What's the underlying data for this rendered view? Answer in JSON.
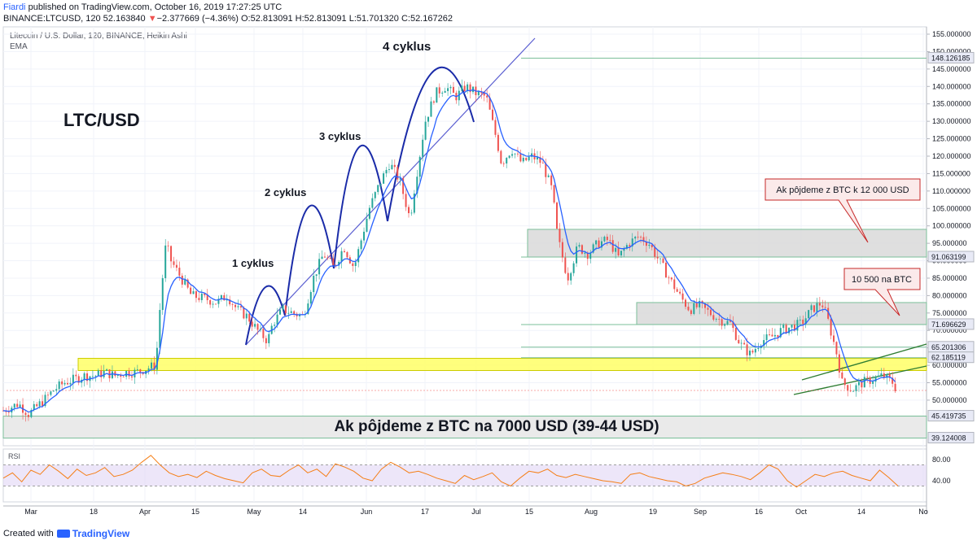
{
  "header": {
    "author": "Fiardi",
    "published": "published on TradingView.com, October 16, 2019 17:27:25 UTC",
    "symbol": "BINANCE:LTCUSD, 120",
    "last": "52.163840",
    "change_arrow": "▼",
    "change": "−2.377669 (−4.36%)",
    "ohlc": "O:52.813091 H:52.813091 L:51.701320 C:52.167262"
  },
  "legend": {
    "line1": "Litecoin / U.S. Dollar, 120, BINANCE, Heikin Ashi",
    "line2": "EMA"
  },
  "footer": {
    "created_with": "Created with",
    "brand": "TradingView"
  },
  "colors": {
    "up": "#26a69a",
    "down": "#ef5350",
    "ema": "#2962ff",
    "rsi": "#f57f17",
    "rsi_band": "#e1d5f5",
    "yellow_zone": "#ffff66",
    "grey_zone": "#d9d9d9",
    "arc": "#1a2ba8"
  },
  "chart_data": {
    "type": "line",
    "price_scale": [
      155,
      150,
      145,
      140,
      135,
      130,
      125,
      120,
      115,
      110,
      105,
      100,
      95,
      90,
      85,
      80,
      75,
      70,
      65,
      60,
      55,
      50
    ],
    "price_labels": [
      "155.000000",
      "150.000000",
      "145.000000",
      "140.000000",
      "135.000000",
      "130.000000",
      "125.000000",
      "120.000000",
      "115.000000",
      "110.000000",
      "105.000000",
      "100.000000",
      "95.000000",
      "90.000000",
      "85.000000",
      "80.000000",
      "75.000000",
      "70.000000",
      "65.000000",
      "60.000000",
      "55.000000",
      "50.000000"
    ],
    "x_ticks": [
      "Mar",
      "18",
      "Apr",
      "15",
      "May",
      "14",
      "Jun",
      "17",
      "Jul",
      "15",
      "Aug",
      "19",
      "Sep",
      "16",
      "Oct",
      "14",
      "No"
    ],
    "marked_levels": [
      {
        "label": "148.126185",
        "value": 148.126185
      },
      {
        "label": "91.063199",
        "value": 91.063199
      },
      {
        "label": "71.696629",
        "value": 71.696629
      },
      {
        "label": "65.201306",
        "value": 65.201306
      },
      {
        "label": "62.185119",
        "value": 62.185119
      },
      {
        "label": "45.419735",
        "value": 45.419735
      },
      {
        "label": "39.124008",
        "value": 39.124008
      }
    ],
    "price_path": [
      [
        0,
        47
      ],
      [
        3,
        49
      ],
      [
        5,
        46
      ],
      [
        8,
        50
      ],
      [
        10,
        53
      ],
      [
        12,
        55
      ],
      [
        14,
        56
      ],
      [
        16,
        57
      ],
      [
        18,
        57
      ],
      [
        20,
        58
      ],
      [
        22,
        57
      ],
      [
        24,
        58
      ],
      [
        26,
        58
      ],
      [
        28,
        59
      ],
      [
        30,
        60
      ],
      [
        31,
        80
      ],
      [
        32,
        95
      ],
      [
        33,
        90
      ],
      [
        35,
        85
      ],
      [
        37,
        80
      ],
      [
        40,
        79
      ],
      [
        42,
        78
      ],
      [
        44,
        80
      ],
      [
        46,
        76
      ],
      [
        48,
        74
      ],
      [
        50,
        70
      ],
      [
        52,
        67
      ],
      [
        53,
        72
      ],
      [
        55,
        76
      ],
      [
        57,
        75
      ],
      [
        59,
        74
      ],
      [
        61,
        85
      ],
      [
        63,
        92
      ],
      [
        65,
        88
      ],
      [
        67,
        94
      ],
      [
        69,
        88
      ],
      [
        72,
        105
      ],
      [
        74,
        112
      ],
      [
        76,
        118
      ],
      [
        78,
        113
      ],
      [
        80,
        102
      ],
      [
        81,
        112
      ],
      [
        83,
        130
      ],
      [
        85,
        138
      ],
      [
        87,
        140
      ],
      [
        89,
        137
      ],
      [
        91,
        140
      ],
      [
        93,
        138
      ],
      [
        95,
        137
      ],
      [
        97,
        125
      ],
      [
        98,
        118
      ],
      [
        100,
        122
      ],
      [
        102,
        118
      ],
      [
        104,
        120
      ],
      [
        106,
        118
      ],
      [
        108,
        110
      ],
      [
        109,
        97
      ],
      [
        111,
        85
      ],
      [
        113,
        94
      ],
      [
        115,
        92
      ],
      [
        117,
        95
      ],
      [
        119,
        96
      ],
      [
        121,
        91
      ],
      [
        123,
        95
      ],
      [
        125,
        97
      ],
      [
        127,
        95
      ],
      [
        129,
        90
      ],
      [
        131,
        85
      ],
      [
        133,
        80
      ],
      [
        135,
        76
      ],
      [
        137,
        77
      ],
      [
        139,
        75
      ],
      [
        141,
        73
      ],
      [
        143,
        72
      ],
      [
        145,
        66
      ],
      [
        147,
        63
      ],
      [
        149,
        67
      ],
      [
        151,
        68
      ],
      [
        153,
        70
      ],
      [
        155,
        71
      ],
      [
        157,
        72
      ],
      [
        159,
        76
      ],
      [
        161,
        78
      ],
      [
        162,
        74
      ],
      [
        164,
        63
      ],
      [
        165,
        55
      ],
      [
        167,
        53
      ],
      [
        169,
        55
      ],
      [
        171,
        56
      ],
      [
        173,
        57
      ],
      [
        175,
        55
      ],
      [
        176,
        52
      ]
    ],
    "rsi": {
      "levels": [
        80,
        40
      ],
      "band": [
        30,
        70
      ],
      "values": [
        45,
        55,
        38,
        60,
        52,
        70,
        58,
        44,
        62,
        50,
        55,
        65,
        48,
        52,
        60,
        75,
        88,
        70,
        55,
        48,
        52,
        46,
        58,
        50,
        44,
        40,
        36,
        55,
        62,
        50,
        48,
        60,
        70,
        55,
        62,
        48,
        72,
        66,
        58,
        45,
        40,
        62,
        75,
        66,
        55,
        58,
        52,
        45,
        40,
        35,
        50,
        42,
        48,
        55,
        38,
        30,
        45,
        58,
        55,
        62,
        50,
        46,
        52,
        48,
        44,
        40,
        38,
        35,
        52,
        55,
        48,
        44,
        40,
        38,
        30,
        35,
        45,
        50,
        55,
        52,
        48,
        42,
        55,
        70,
        62,
        40,
        28,
        40,
        52,
        48,
        55,
        58,
        50,
        45,
        40,
        60,
        46,
        30
      ]
    },
    "zones": [
      {
        "name": "yellow",
        "from": 58.5,
        "to": 62
      },
      {
        "name": "grey_high",
        "from": 91.06,
        "to": 99
      },
      {
        "name": "grey_mid",
        "from": 71.7,
        "to": 78
      },
      {
        "name": "grey_low",
        "from": 39.12,
        "to": 45.42
      }
    ],
    "ylim": [
      37,
      157
    ]
  },
  "annotations": {
    "pair": "LTC/USD",
    "cycle1": "1 cyklus",
    "cycle2": "2 cyklus",
    "cycle3": "3 cyklus",
    "cycle4": "4 cyklus",
    "callout1": "Ak pôjdeme z BTC k 12 000 USD",
    "callout2": "10 500 na BTC",
    "bottom": "Ak pôjdeme z BTC na 7000 USD (39-44 USD)",
    "rsi_label": "RSI",
    "rsi_80": "80.00",
    "rsi_40": "40.00"
  }
}
